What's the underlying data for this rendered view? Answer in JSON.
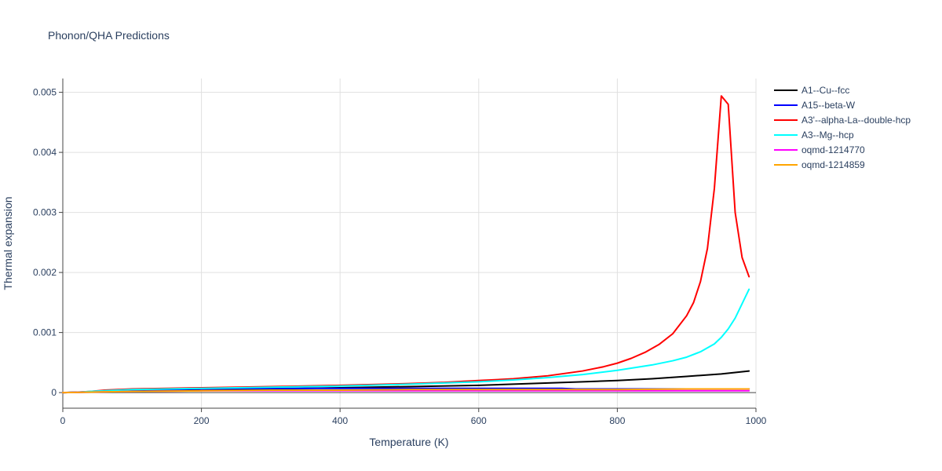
{
  "chart_data": {
    "type": "line",
    "title": "Phonon/QHA Predictions",
    "xlabel": "Temperature (K)",
    "ylabel": "Thermal expansion",
    "xlim": [
      0,
      1000
    ],
    "ylim": [
      -0.00026,
      0.00523
    ],
    "xticks": [
      0,
      200,
      400,
      600,
      800,
      1000
    ],
    "xtick_labels": [
      "0",
      "200",
      "400",
      "600",
      "800",
      "1000"
    ],
    "yticks": [
      0,
      0.001,
      0.002,
      0.003,
      0.004,
      0.005
    ],
    "ytick_labels": [
      "0",
      "0.001",
      "0.002",
      "0.003",
      "0.004",
      "0.005"
    ],
    "grid": true,
    "legend_position": "top-right outside",
    "series": [
      {
        "name": "A1--Cu--fcc",
        "color": "#000000",
        "x": [
          0,
          40,
          80,
          100,
          150,
          200,
          300,
          400,
          500,
          600,
          700,
          750,
          800,
          850,
          900,
          950,
          990
        ],
        "y": [
          0,
          1e-05,
          2e-05,
          3e-05,
          4e-05,
          5e-05,
          6e-05,
          8e-05,
          0.0001,
          0.00012,
          0.00016,
          0.00018,
          0.0002,
          0.00023,
          0.00027,
          0.00031,
          0.00036
        ]
      },
      {
        "name": "A15--beta-W",
        "color": "#0000ff",
        "x": [
          0,
          50,
          100,
          200,
          300,
          400,
          500,
          600,
          700,
          720,
          740,
          800,
          900,
          990
        ],
        "y": [
          0,
          2e-05,
          4e-05,
          6e-05,
          7e-05,
          7e-05,
          7e-05,
          7e-05,
          7e-05,
          7e-05,
          6e-05,
          6e-05,
          6e-05,
          6e-05
        ]
      },
      {
        "name": "A3'--alpha-La--double-hcp",
        "color": "#ff0000",
        "x": [
          0,
          20,
          40,
          60,
          80,
          100,
          150,
          200,
          300,
          400,
          500,
          550,
          600,
          650,
          700,
          750,
          780,
          800,
          820,
          840,
          860,
          880,
          900,
          910,
          920,
          930,
          940,
          950,
          960,
          970,
          980,
          990
        ],
        "y": [
          0,
          5e-06,
          2e-05,
          4e-05,
          5e-05,
          6e-05,
          7e-05,
          8e-05,
          0.0001,
          0.00012,
          0.00015,
          0.00017,
          0.0002,
          0.00023,
          0.00028,
          0.00036,
          0.00043,
          0.00049,
          0.00057,
          0.00067,
          0.0008,
          0.00098,
          0.00128,
          0.0015,
          0.00185,
          0.0024,
          0.0034,
          0.00494,
          0.0048,
          0.003,
          0.00225,
          0.00193
        ]
      },
      {
        "name": "A3--Mg--hcp",
        "color": "#00ffff",
        "x": [
          0,
          20,
          40,
          60,
          80,
          100,
          150,
          200,
          300,
          400,
          500,
          550,
          600,
          650,
          700,
          750,
          800,
          850,
          880,
          900,
          920,
          940,
          950,
          960,
          970,
          980,
          990
        ],
        "y": [
          0,
          5e-06,
          2e-05,
          3e-05,
          4e-05,
          5e-05,
          6e-05,
          7e-05,
          9e-05,
          0.00011,
          0.00014,
          0.00016,
          0.00018,
          0.00021,
          0.00025,
          0.0003,
          0.00037,
          0.00046,
          0.00053,
          0.00059,
          0.00068,
          0.00081,
          0.00092,
          0.00106,
          0.00124,
          0.00148,
          0.00172
        ]
      },
      {
        "name": "oqmd-1214770",
        "color": "#ff00ff",
        "x": [
          0,
          50,
          100,
          200,
          300,
          400,
          500,
          600,
          700,
          800,
          900,
          990
        ],
        "y": [
          0,
          1e-05,
          2e-05,
          3e-05,
          3e-05,
          3e-05,
          3e-05,
          3e-05,
          3e-05,
          3e-05,
          3e-05,
          3e-05
        ]
      },
      {
        "name": "oqmd-1214859",
        "color": "#ffa500",
        "x": [
          0,
          50,
          100,
          200,
          300,
          400,
          500,
          600,
          700,
          800,
          900,
          990
        ],
        "y": [
          0,
          1e-05,
          2e-05,
          3e-05,
          4e-05,
          4e-05,
          5e-05,
          5e-05,
          5e-05,
          5e-05,
          6e-05,
          6e-05
        ]
      }
    ]
  }
}
